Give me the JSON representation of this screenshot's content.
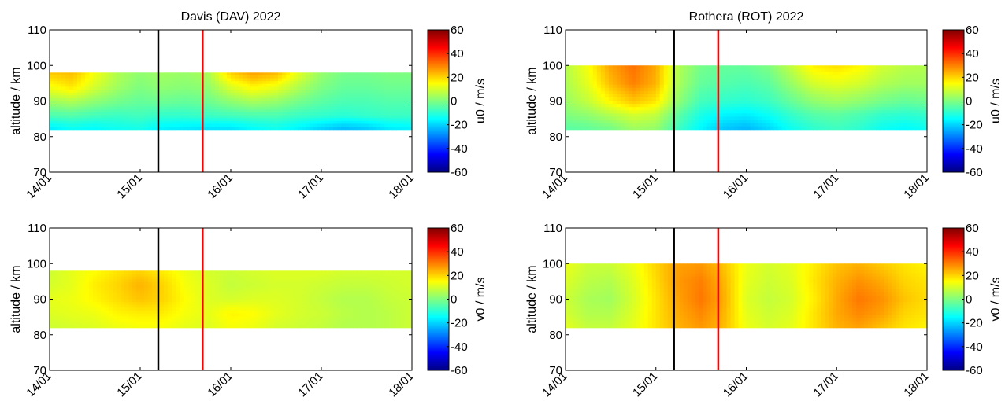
{
  "chart_data": [
    {
      "type": "heatmap",
      "title": "Davis (DAV)  2022",
      "ylabel": "altitude / km",
      "colorbar_label": "u0 / m/s",
      "x_ticks": [
        "14/01",
        "15/01",
        "16/01",
        "17/01",
        "18/01"
      ],
      "xlim": [
        "14/01",
        "18/01"
      ],
      "ylim": [
        70,
        110
      ],
      "y_ticks": [
        70,
        80,
        90,
        100,
        110
      ],
      "clim": [
        -60,
        60
      ],
      "colorbar_ticks": [
        60,
        40,
        20,
        0,
        -20,
        -40,
        -60
      ],
      "data_altitude_range": [
        82,
        98
      ],
      "vertical_lines": [
        {
          "x": "15/01 ~05:00",
          "color": "#000000"
        },
        {
          "x": "15/01 ~17:00",
          "color": "#ff0000"
        }
      ],
      "colormap": "jet",
      "x": [
        0,
        0.25,
        0.5,
        0.75,
        1.0,
        1.25,
        1.5,
        1.75,
        2.0,
        2.25,
        2.5,
        2.75,
        3.0,
        3.25,
        3.5,
        3.75,
        4.0
      ],
      "y": [
        82,
        86,
        90,
        94,
        98
      ],
      "z": [
        [
          -18,
          -15,
          -16,
          -14,
          -13,
          -17,
          -18,
          -19,
          -19,
          -16,
          -14,
          -17,
          -21,
          -24,
          -22,
          -18,
          -17
        ],
        [
          -6,
          -5,
          -7,
          -8,
          -7,
          -9,
          -9,
          -8,
          -7,
          -6,
          -6,
          -8,
          -9,
          -10,
          -9,
          -8,
          -8
        ],
        [
          4,
          6,
          2,
          -1,
          -3,
          -2,
          -3,
          -2,
          2,
          5,
          3,
          -1,
          -4,
          -6,
          -6,
          -5,
          -5
        ],
        [
          14,
          18,
          10,
          4,
          0,
          2,
          1,
          2,
          11,
          16,
          13,
          6,
          0,
          -3,
          -3,
          -2,
          -2
        ],
        [
          22,
          23,
          14,
          6,
          2,
          4,
          3,
          5,
          21,
          27,
          24,
          12,
          3,
          -1,
          -1,
          0,
          0
        ]
      ]
    },
    {
      "type": "heatmap",
      "title": "Rothera (ROT)  2022",
      "ylabel": "altitude / km",
      "colorbar_label": "u0 / m/s",
      "x_ticks": [
        "14/01",
        "15/01",
        "16/01",
        "17/01",
        "18/01"
      ],
      "xlim": [
        "14/01",
        "18/01"
      ],
      "ylim": [
        70,
        110
      ],
      "y_ticks": [
        70,
        80,
        90,
        100,
        110
      ],
      "clim": [
        -60,
        60
      ],
      "colorbar_ticks": [
        60,
        40,
        20,
        0,
        -20,
        -40,
        -60
      ],
      "data_altitude_range": [
        82,
        100
      ],
      "vertical_lines": [
        {
          "x": "15/01 ~05:00",
          "color": "#000000"
        },
        {
          "x": "15/01 ~17:00",
          "color": "#ff0000"
        }
      ],
      "colormap": "jet",
      "x": [
        0,
        0.25,
        0.5,
        0.75,
        1.0,
        1.25,
        1.5,
        1.75,
        2.0,
        2.25,
        2.5,
        2.75,
        3.0,
        3.25,
        3.5,
        3.75,
        4.0
      ],
      "y": [
        82,
        86,
        90,
        95,
        100
      ],
      "z": [
        [
          -5,
          -4,
          -2,
          3,
          2,
          -8,
          -16,
          -22,
          -24,
          -20,
          -14,
          -10,
          -8,
          -10,
          -14,
          -16,
          -14
        ],
        [
          0,
          2,
          6,
          10,
          8,
          -4,
          -12,
          -16,
          -17,
          -14,
          -9,
          -5,
          -4,
          -6,
          -9,
          -10,
          -9
        ],
        [
          3,
          8,
          16,
          22,
          18,
          2,
          -7,
          -9,
          -10,
          -8,
          -3,
          2,
          4,
          2,
          -1,
          -3,
          -2
        ],
        [
          5,
          12,
          23,
          30,
          24,
          5,
          -3,
          -5,
          -6,
          -4,
          3,
          10,
          12,
          10,
          6,
          4,
          4
        ],
        [
          6,
          14,
          26,
          32,
          25,
          6,
          -1,
          -3,
          -3,
          0,
          8,
          17,
          19,
          16,
          10,
          7,
          6
        ]
      ]
    },
    {
      "type": "heatmap",
      "title": "",
      "ylabel": "altitude / km",
      "colorbar_label": "v0 / m/s",
      "x_ticks": [
        "14/01",
        "15/01",
        "16/01",
        "17/01",
        "18/01"
      ],
      "xlim": [
        "14/01",
        "18/01"
      ],
      "ylim": [
        70,
        110
      ],
      "y_ticks": [
        70,
        80,
        90,
        100,
        110
      ],
      "clim": [
        -60,
        60
      ],
      "colorbar_ticks": [
        60,
        40,
        20,
        0,
        -20,
        -40,
        -60
      ],
      "data_altitude_range": [
        82,
        98
      ],
      "vertical_lines": [
        {
          "x": "15/01 ~05:00",
          "color": "#000000"
        },
        {
          "x": "15/01 ~17:00",
          "color": "#ff0000"
        }
      ],
      "colormap": "jet",
      "x": [
        0,
        0.25,
        0.5,
        0.75,
        1.0,
        1.25,
        1.5,
        1.75,
        2.0,
        2.25,
        2.5,
        2.75,
        3.0,
        3.25,
        3.5,
        3.75,
        4.0
      ],
      "y": [
        82,
        86,
        90,
        94,
        98
      ],
      "z": [
        [
          9,
          10,
          11,
          13,
          14,
          14,
          12,
          11,
          14,
          13,
          10,
          9,
          8,
          6,
          6,
          7,
          9
        ],
        [
          11,
          12,
          13,
          16,
          17,
          17,
          14,
          12,
          16,
          15,
          12,
          10,
          9,
          7,
          6,
          7,
          9
        ],
        [
          12,
          13,
          16,
          19,
          22,
          20,
          15,
          11,
          10,
          11,
          11,
          10,
          8,
          6,
          6,
          8,
          9
        ],
        [
          10,
          12,
          17,
          20,
          24,
          20,
          14,
          11,
          8,
          9,
          10,
          10,
          9,
          8,
          8,
          9,
          10
        ],
        [
          9,
          12,
          15,
          18,
          20,
          17,
          13,
          10,
          9,
          10,
          11,
          11,
          11,
          10,
          10,
          10,
          10
        ]
      ]
    },
    {
      "type": "heatmap",
      "title": "",
      "ylabel": "altitude / km",
      "colorbar_label": "v0 / m/s",
      "x_ticks": [
        "14/01",
        "15/01",
        "16/01",
        "17/01",
        "18/01"
      ],
      "xlim": [
        "14/01",
        "18/01"
      ],
      "ylim": [
        70,
        110
      ],
      "y_ticks": [
        70,
        80,
        90,
        100,
        110
      ],
      "clim": [
        -60,
        60
      ],
      "colorbar_ticks": [
        60,
        40,
        20,
        0,
        -20,
        -40,
        -60
      ],
      "data_altitude_range": [
        82,
        100
      ],
      "vertical_lines": [
        {
          "x": "15/01 ~05:00",
          "color": "#000000"
        },
        {
          "x": "15/01 ~17:00",
          "color": "#ff0000"
        }
      ],
      "colormap": "jet",
      "x": [
        0,
        0.25,
        0.5,
        0.75,
        1.0,
        1.25,
        1.5,
        1.75,
        2.0,
        2.25,
        2.5,
        2.75,
        3.0,
        3.25,
        3.5,
        3.75,
        4.0
      ],
      "y": [
        82,
        86,
        90,
        95,
        100
      ],
      "z": [
        [
          12,
          8,
          8,
          12,
          18,
          24,
          27,
          23,
          13,
          10,
          12,
          18,
          24,
          26,
          22,
          18,
          16
        ],
        [
          10,
          6,
          6,
          11,
          18,
          25,
          29,
          24,
          12,
          9,
          11,
          18,
          25,
          29,
          26,
          20,
          18
        ],
        [
          9,
          5,
          4,
          10,
          18,
          26,
          31,
          25,
          11,
          8,
          10,
          17,
          25,
          31,
          28,
          22,
          19
        ],
        [
          11,
          7,
          6,
          11,
          19,
          27,
          30,
          24,
          12,
          9,
          11,
          18,
          24,
          28,
          25,
          20,
          18
        ],
        [
          13,
          9,
          9,
          13,
          20,
          26,
          27,
          22,
          13,
          10,
          12,
          17,
          22,
          24,
          21,
          18,
          16
        ]
      ]
    }
  ]
}
